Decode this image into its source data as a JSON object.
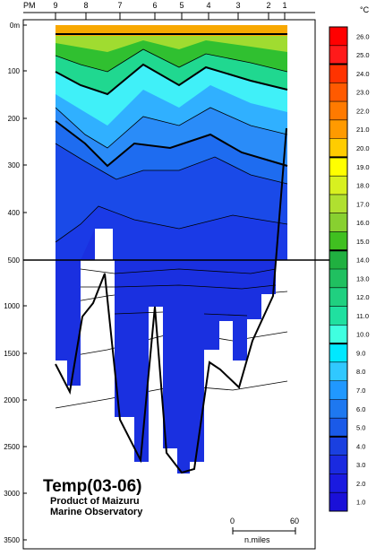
{
  "chart_data": {
    "type": "heatmap",
    "title": "Temp(03-06)",
    "subtitle_lines": [
      "Product of Maizuru",
      "Marine Observatory"
    ],
    "unit": "°C",
    "station_axis_label": "PM",
    "stations": [
      "9",
      "8",
      "7",
      "6",
      "5",
      "4",
      "3",
      "2",
      "1"
    ],
    "depth_ticks_upper": [
      "0m",
      "100",
      "200",
      "300",
      "400",
      "500"
    ],
    "depth_ticks_lower": [
      "1000",
      "1500",
      "2000",
      "2500",
      "3000",
      "3500"
    ],
    "depth_break": 500,
    "colorbar_labels": [
      "26.0",
      "25.0",
      "24.0",
      "23.0",
      "22.0",
      "21.0",
      "20.0",
      "19.0",
      "18.0",
      "17.0",
      "16.0",
      "15.0",
      "14.0",
      "13.0",
      "12.0",
      "11.0",
      "10.0",
      "9.0",
      "8.0",
      "7.0",
      "6.0",
      "5.0",
      "4.0",
      "3.0",
      "2.0",
      "1.0"
    ],
    "colorbar_colors": [
      "#ff0000",
      "#ff1a1a",
      "#ff3300",
      "#ff5a00",
      "#ff7a00",
      "#ff9a00",
      "#ffcc00",
      "#ffff00",
      "#d8f020",
      "#b0e030",
      "#88d030",
      "#40c020",
      "#20b040",
      "#20c060",
      "#20d080",
      "#20e0a0",
      "#40ffe0",
      "#00e8ff",
      "#30c8ff",
      "#2098ff",
      "#1e78f0",
      "#1a5ae8",
      "#1a40e0",
      "#1a2ae0",
      "#1a1ae0",
      "#1a10d8"
    ],
    "scale_bar": {
      "start": "0",
      "end": "60",
      "unit": "n.miles"
    }
  }
}
